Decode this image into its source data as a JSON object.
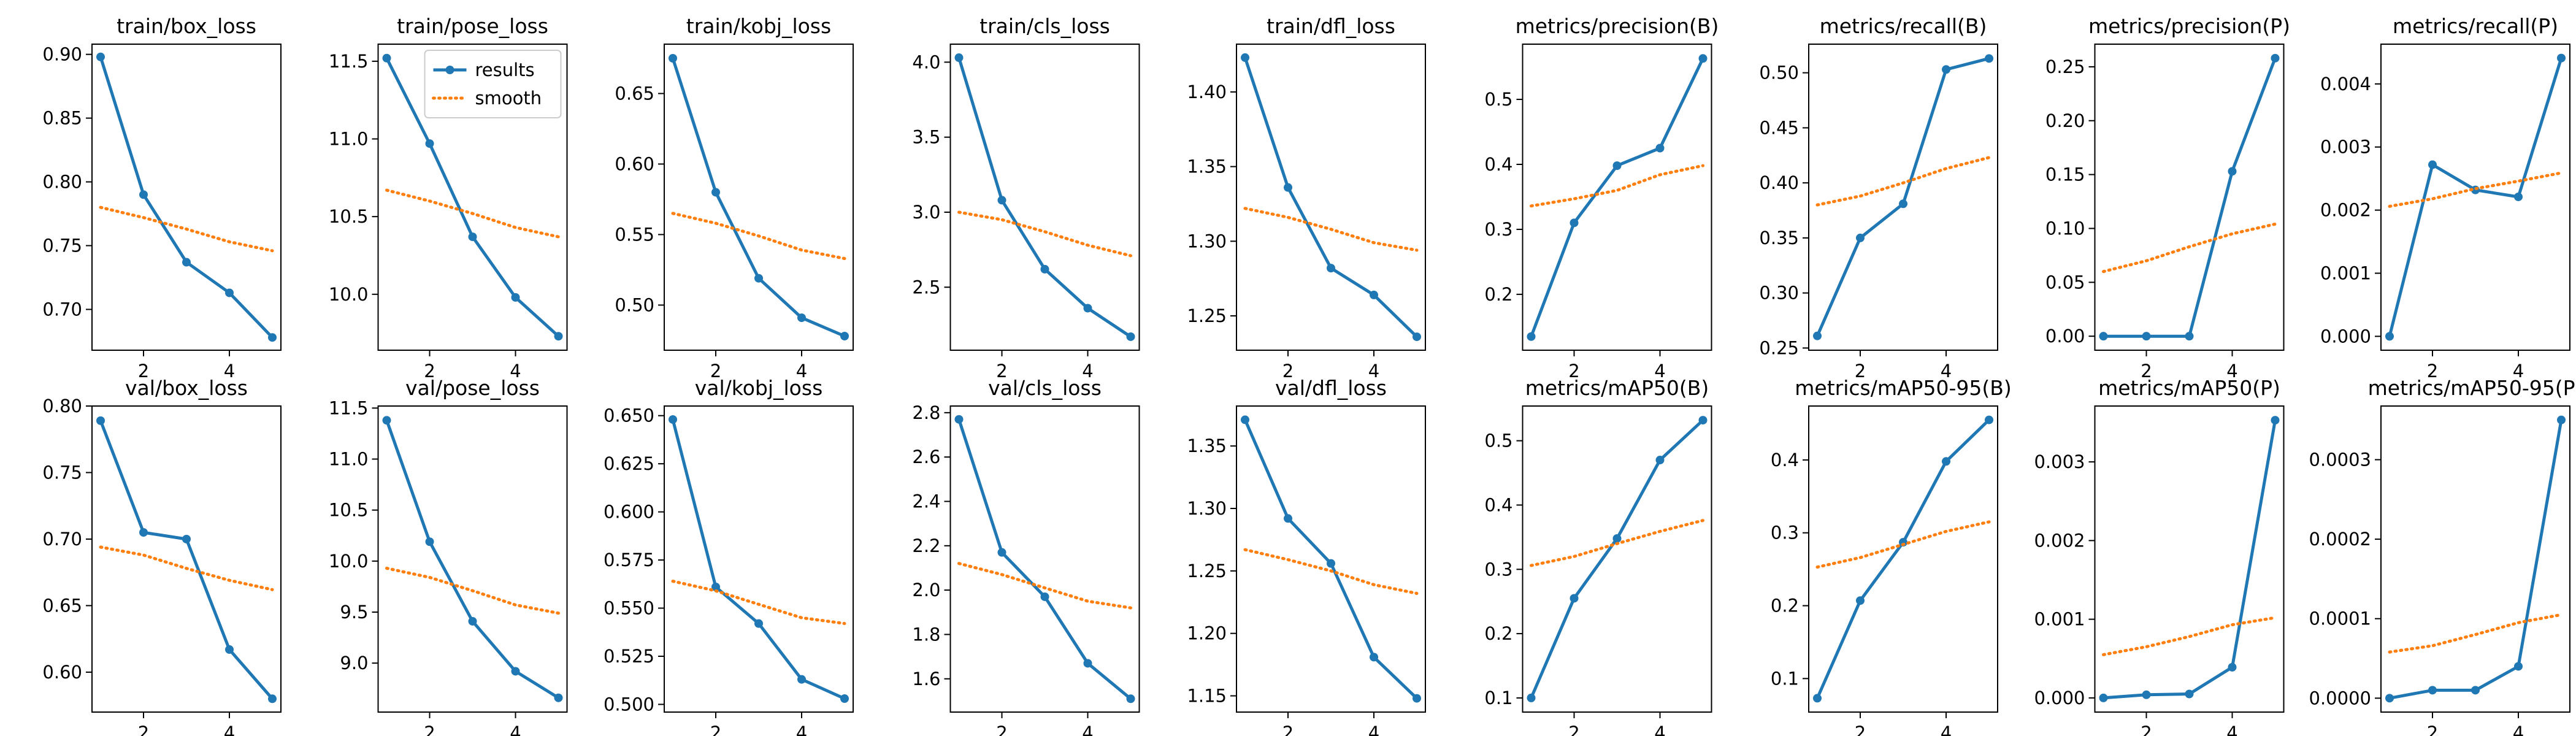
{
  "figure": {
    "series_names": [
      "results",
      "smooth"
    ],
    "colors": {
      "results": "#1f77b4",
      "smooth": "#ff7f0e"
    },
    "legend_location": "upper-right of the train/pose_loss panel"
  },
  "chart_data": [
    {
      "type": "line",
      "title": "train/box_loss",
      "x": [
        1,
        2,
        3,
        4,
        5
      ],
      "series": [
        {
          "name": "results",
          "values": [
            0.898,
            0.79,
            0.737,
            0.713,
            0.678
          ]
        },
        {
          "name": "smooth",
          "values": [
            0.78,
            0.772,
            0.763,
            0.753,
            0.746
          ]
        }
      ],
      "ylim": [
        0.668,
        0.908
      ],
      "yticks": [
        0.7,
        0.75,
        0.8,
        0.85,
        0.9
      ],
      "ytick_labels": [
        "0.70",
        "0.75",
        "0.80",
        "0.85",
        "0.90"
      ],
      "xlim": [
        0.8,
        5.2
      ],
      "xticks": [
        2,
        4
      ]
    },
    {
      "type": "line",
      "title": "train/pose_loss",
      "x": [
        1,
        2,
        3,
        4,
        5
      ],
      "series": [
        {
          "name": "results",
          "values": [
            11.52,
            10.97,
            10.37,
            9.98,
            9.73
          ]
        },
        {
          "name": "smooth",
          "values": [
            10.67,
            10.6,
            10.52,
            10.43,
            10.37
          ]
        }
      ],
      "ylim": [
        9.64,
        11.61
      ],
      "yticks": [
        10.0,
        10.5,
        11.0,
        11.5
      ],
      "ytick_labels": [
        "10.0",
        "10.5",
        "11.0",
        "11.5"
      ],
      "xlim": [
        0.8,
        5.2
      ],
      "xticks": [
        2,
        4
      ],
      "legend": true
    },
    {
      "type": "line",
      "title": "train/kobj_loss",
      "x": [
        1,
        2,
        3,
        4,
        5
      ],
      "series": [
        {
          "name": "results",
          "values": [
            0.675,
            0.58,
            0.519,
            0.491,
            0.478
          ]
        },
        {
          "name": "smooth",
          "values": [
            0.565,
            0.558,
            0.549,
            0.539,
            0.533
          ]
        }
      ],
      "ylim": [
        0.468,
        0.685
      ],
      "yticks": [
        0.5,
        0.55,
        0.6,
        0.65
      ],
      "ytick_labels": [
        "0.50",
        "0.55",
        "0.60",
        "0.65"
      ],
      "xlim": [
        0.8,
        5.2
      ],
      "xticks": [
        2,
        4
      ]
    },
    {
      "type": "line",
      "title": "train/cls_loss",
      "x": [
        1,
        2,
        3,
        4,
        5
      ],
      "series": [
        {
          "name": "results",
          "values": [
            4.03,
            3.08,
            2.62,
            2.36,
            2.17
          ]
        },
        {
          "name": "smooth",
          "values": [
            3.0,
            2.95,
            2.87,
            2.78,
            2.71
          ]
        }
      ],
      "ylim": [
        2.08,
        4.12
      ],
      "yticks": [
        2.5,
        3.0,
        3.5,
        4.0
      ],
      "ytick_labels": [
        "2.5",
        "3.0",
        "3.5",
        "4.0"
      ],
      "xlim": [
        0.8,
        5.2
      ],
      "xticks": [
        2,
        4
      ]
    },
    {
      "type": "line",
      "title": "train/dfl_loss",
      "x": [
        1,
        2,
        3,
        4,
        5
      ],
      "series": [
        {
          "name": "results",
          "values": [
            1.423,
            1.336,
            1.282,
            1.264,
            1.236
          ]
        },
        {
          "name": "smooth",
          "values": [
            1.322,
            1.316,
            1.308,
            1.299,
            1.294
          ]
        }
      ],
      "ylim": [
        1.227,
        1.432
      ],
      "yticks": [
        1.25,
        1.3,
        1.35,
        1.4
      ],
      "ytick_labels": [
        "1.25",
        "1.30",
        "1.35",
        "1.40"
      ],
      "xlim": [
        0.8,
        5.2
      ],
      "xticks": [
        2,
        4
      ]
    },
    {
      "type": "line",
      "title": "metrics/precision(B)",
      "x": [
        1,
        2,
        3,
        4,
        5
      ],
      "series": [
        {
          "name": "results",
          "values": [
            0.135,
            0.31,
            0.398,
            0.425,
            0.563
          ]
        },
        {
          "name": "smooth",
          "values": [
            0.336,
            0.347,
            0.36,
            0.384,
            0.398
          ]
        }
      ],
      "ylim": [
        0.114,
        0.585
      ],
      "yticks": [
        0.2,
        0.3,
        0.4,
        0.5
      ],
      "ytick_labels": [
        "0.2",
        "0.3",
        "0.4",
        "0.5"
      ],
      "xlim": [
        0.8,
        5.2
      ],
      "xticks": [
        2,
        4
      ]
    },
    {
      "type": "line",
      "title": "metrics/recall(B)",
      "x": [
        1,
        2,
        3,
        4,
        5
      ],
      "series": [
        {
          "name": "results",
          "values": [
            0.261,
            0.35,
            0.381,
            0.503,
            0.513
          ]
        },
        {
          "name": "smooth",
          "values": [
            0.38,
            0.388,
            0.4,
            0.413,
            0.423
          ]
        }
      ],
      "ylim": [
        0.248,
        0.526
      ],
      "yticks": [
        0.25,
        0.3,
        0.35,
        0.4,
        0.45,
        0.5
      ],
      "ytick_labels": [
        "0.25",
        "0.30",
        "0.35",
        "0.40",
        "0.45",
        "0.50"
      ],
      "xlim": [
        0.8,
        5.2
      ],
      "xticks": [
        2,
        4
      ]
    },
    {
      "type": "line",
      "title": "metrics/precision(P)",
      "x": [
        1,
        2,
        3,
        4,
        5
      ],
      "series": [
        {
          "name": "results",
          "values": [
            0.0,
            0.0,
            0.0,
            0.153,
            0.258
          ]
        },
        {
          "name": "smooth",
          "values": [
            0.06,
            0.07,
            0.083,
            0.095,
            0.104
          ]
        }
      ],
      "ylim": [
        -0.013,
        0.271
      ],
      "yticks": [
        0.0,
        0.05,
        0.1,
        0.15,
        0.2,
        0.25
      ],
      "ytick_labels": [
        "0.00",
        "0.05",
        "0.10",
        "0.15",
        "0.20",
        "0.25"
      ],
      "xlim": [
        0.8,
        5.2
      ],
      "xticks": [
        2,
        4
      ]
    },
    {
      "type": "line",
      "title": "metrics/recall(P)",
      "x": [
        1,
        2,
        3,
        4,
        5
      ],
      "series": [
        {
          "name": "results",
          "values": [
            0.0,
            0.00272,
            0.00232,
            0.00221,
            0.00441
          ]
        },
        {
          "name": "smooth",
          "values": [
            0.00206,
            0.00218,
            0.00234,
            0.00246,
            0.00259
          ]
        }
      ],
      "ylim": [
        -0.00022,
        0.00463
      ],
      "yticks": [
        0.0,
        0.001,
        0.002,
        0.003,
        0.004
      ],
      "ytick_labels": [
        "0.000",
        "0.001",
        "0.002",
        "0.003",
        "0.004"
      ],
      "xlim": [
        0.8,
        5.2
      ],
      "xticks": [
        2,
        4
      ]
    },
    {
      "type": "line",
      "title": "val/box_loss",
      "x": [
        1,
        2,
        3,
        4,
        5
      ],
      "series": [
        {
          "name": "results",
          "values": [
            0.789,
            0.705,
            0.7,
            0.617,
            0.58
          ]
        },
        {
          "name": "smooth",
          "values": [
            0.694,
            0.688,
            0.678,
            0.669,
            0.662
          ]
        }
      ],
      "ylim": [
        0.57,
        0.8
      ],
      "yticks": [
        0.6,
        0.65,
        0.7,
        0.75,
        0.8
      ],
      "ytick_labels": [
        "0.60",
        "0.65",
        "0.70",
        "0.75",
        "0.80"
      ],
      "xlim": [
        0.8,
        5.2
      ],
      "xticks": [
        2,
        4
      ]
    },
    {
      "type": "line",
      "title": "val/pose_loss",
      "x": [
        1,
        2,
        3,
        4,
        5
      ],
      "series": [
        {
          "name": "results",
          "values": [
            11.38,
            10.19,
            9.41,
            8.92,
            8.66
          ]
        },
        {
          "name": "smooth",
          "values": [
            9.93,
            9.84,
            9.71,
            9.57,
            9.49
          ]
        }
      ],
      "ylim": [
        8.52,
        11.52
      ],
      "yticks": [
        9.0,
        9.5,
        10.0,
        10.5,
        11.0,
        11.5
      ],
      "ytick_labels": [
        "9.0",
        "9.5",
        "10.0",
        "10.5",
        "11.0",
        "11.5"
      ],
      "xlim": [
        0.8,
        5.2
      ],
      "xticks": [
        2,
        4
      ]
    },
    {
      "type": "line",
      "title": "val/kobj_loss",
      "x": [
        1,
        2,
        3,
        4,
        5
      ],
      "series": [
        {
          "name": "results",
          "values": [
            0.648,
            0.561,
            0.542,
            0.513,
            0.503
          ]
        },
        {
          "name": "smooth",
          "values": [
            0.564,
            0.559,
            0.552,
            0.545,
            0.542
          ]
        }
      ],
      "ylim": [
        0.496,
        0.655
      ],
      "yticks": [
        0.5,
        0.525,
        0.55,
        0.575,
        0.6,
        0.625,
        0.65
      ],
      "ytick_labels": [
        "0.500",
        "0.525",
        "0.550",
        "0.575",
        "0.600",
        "0.625",
        "0.650"
      ],
      "xlim": [
        0.8,
        5.2
      ],
      "xticks": [
        2,
        4
      ]
    },
    {
      "type": "line",
      "title": "val/cls_loss",
      "x": [
        1,
        2,
        3,
        4,
        5
      ],
      "series": [
        {
          "name": "results",
          "values": [
            2.77,
            2.17,
            1.97,
            1.67,
            1.51
          ]
        },
        {
          "name": "smooth",
          "values": [
            2.12,
            2.07,
            2.01,
            1.95,
            1.92
          ]
        }
      ],
      "ylim": [
        1.45,
        2.83
      ],
      "yticks": [
        1.6,
        1.8,
        2.0,
        2.2,
        2.4,
        2.6,
        2.8
      ],
      "ytick_labels": [
        "1.6",
        "1.8",
        "2.0",
        "2.2",
        "2.4",
        "2.6",
        "2.8"
      ],
      "xlim": [
        0.8,
        5.2
      ],
      "xticks": [
        2,
        4
      ]
    },
    {
      "type": "line",
      "title": "val/dfl_loss",
      "x": [
        1,
        2,
        3,
        4,
        5
      ],
      "series": [
        {
          "name": "results",
          "values": [
            1.371,
            1.292,
            1.256,
            1.181,
            1.148
          ]
        },
        {
          "name": "smooth",
          "values": [
            1.267,
            1.259,
            1.25,
            1.239,
            1.232
          ]
        }
      ],
      "ylim": [
        1.137,
        1.382
      ],
      "yticks": [
        1.15,
        1.2,
        1.25,
        1.3,
        1.35
      ],
      "ytick_labels": [
        "1.15",
        "1.20",
        "1.25",
        "1.30",
        "1.35"
      ],
      "xlim": [
        0.8,
        5.2
      ],
      "xticks": [
        2,
        4
      ]
    },
    {
      "type": "line",
      "title": "metrics/mAP50(B)",
      "x": [
        1,
        2,
        3,
        4,
        5
      ],
      "series": [
        {
          "name": "results",
          "values": [
            0.1,
            0.255,
            0.348,
            0.47,
            0.532
          ]
        },
        {
          "name": "smooth",
          "values": [
            0.306,
            0.32,
            0.34,
            0.359,
            0.376
          ]
        }
      ],
      "ylim": [
        0.078,
        0.554
      ],
      "yticks": [
        0.1,
        0.2,
        0.3,
        0.4,
        0.5
      ],
      "ytick_labels": [
        "0.1",
        "0.2",
        "0.3",
        "0.4",
        "0.5"
      ],
      "xlim": [
        0.8,
        5.2
      ],
      "xticks": [
        2,
        4
      ]
    },
    {
      "type": "line",
      "title": "metrics/mAP50-95(B)",
      "x": [
        1,
        2,
        3,
        4,
        5
      ],
      "series": [
        {
          "name": "results",
          "values": [
            0.073,
            0.207,
            0.287,
            0.398,
            0.455
          ]
        },
        {
          "name": "smooth",
          "values": [
            0.253,
            0.266,
            0.284,
            0.302,
            0.315
          ]
        }
      ],
      "ylim": [
        0.054,
        0.474
      ],
      "yticks": [
        0.1,
        0.2,
        0.3,
        0.4
      ],
      "ytick_labels": [
        "0.1",
        "0.2",
        "0.3",
        "0.4"
      ],
      "xlim": [
        0.8,
        5.2
      ],
      "xticks": [
        2,
        4
      ]
    },
    {
      "type": "line",
      "title": "metrics/mAP50(P)",
      "x": [
        1,
        2,
        3,
        4,
        5
      ],
      "series": [
        {
          "name": "results",
          "values": [
            0.0,
            4e-05,
            5e-05,
            0.00039,
            0.00353
          ]
        },
        {
          "name": "smooth",
          "values": [
            0.00055,
            0.00065,
            0.00078,
            0.00093,
            0.00102
          ]
        }
      ],
      "ylim": [
        -0.00018,
        0.00371
      ],
      "yticks": [
        0.0,
        0.001,
        0.002,
        0.003
      ],
      "ytick_labels": [
        "0.000",
        "0.001",
        "0.002",
        "0.003"
      ],
      "xlim": [
        0.8,
        5.2
      ],
      "xticks": [
        2,
        4
      ]
    },
    {
      "type": "line",
      "title": "metrics/mAP50-95(P)",
      "x": [
        1,
        2,
        3,
        4,
        5
      ],
      "series": [
        {
          "name": "results",
          "values": [
            0.0,
            1e-05,
            1e-05,
            4e-05,
            0.00035
          ]
        },
        {
          "name": "smooth",
          "values": [
            5.8e-05,
            6.6e-05,
            8e-05,
            9.5e-05,
            0.000105
          ]
        }
      ],
      "ylim": [
        -1.75e-05,
        0.0003675
      ],
      "yticks": [
        0.0,
        0.0001,
        0.0002,
        0.0003
      ],
      "ytick_labels": [
        "0.0000",
        "0.0001",
        "0.0002",
        "0.0003"
      ],
      "xlim": [
        0.8,
        5.2
      ],
      "xticks": [
        2,
        4
      ]
    }
  ]
}
